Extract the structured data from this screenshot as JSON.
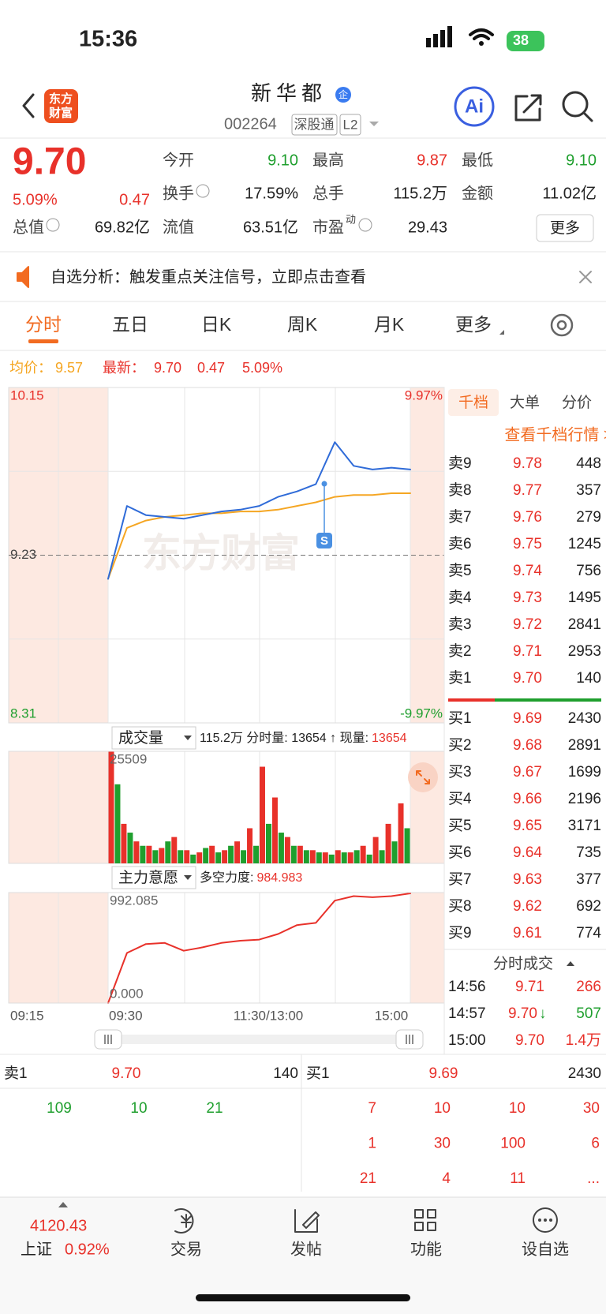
{
  "status": {
    "time": "15:36",
    "battery": "38"
  },
  "header": {
    "logo": [
      "东方",
      "财富"
    ],
    "title": "新华都",
    "badge": "企",
    "code": "002264",
    "tags": [
      "深股通",
      "L2"
    ],
    "ai": "Ai"
  },
  "quote": {
    "price": "9.70",
    "pct": "5.09%",
    "change": "0.47",
    "more": "更多",
    "fields": [
      {
        "label": "今开",
        "value": "9.10",
        "color": "#1f9f2e"
      },
      {
        "label": "最高",
        "value": "9.87",
        "color": "#e8312a"
      },
      {
        "label": "最低",
        "value": "9.10",
        "color": "#1f9f2e"
      },
      {
        "label": "换手",
        "value": "17.59%",
        "color": "#222"
      },
      {
        "label": "总手",
        "value": "115.2万",
        "color": "#222"
      },
      {
        "label": "金额",
        "value": "11.02亿",
        "color": "#222"
      },
      {
        "label": "总值",
        "value": "69.82亿",
        "color": "#222"
      },
      {
        "label": "流值",
        "value": "63.51亿",
        "color": "#222"
      },
      {
        "label": "市盈",
        "sup": "动",
        "value": "29.43",
        "color": "#222"
      }
    ]
  },
  "notice": "自选分析：触发重点关注信号，立即点击查看",
  "tabs": [
    "分时",
    "五日",
    "日K",
    "周K",
    "月K",
    "更多"
  ],
  "chart_data": [
    {
      "type": "line",
      "ylim": [
        8.31,
        10.15
      ],
      "yticks": [
        10.15,
        9.23,
        8.31
      ],
      "y2lim": [
        -9.97,
        9.97
      ],
      "y2ticks": [
        {
          "value": 9.97,
          "label": "9.97%"
        },
        {
          "value": -9.97,
          "label": "-9.97%"
        }
      ],
      "series": [
        {
          "name": "均价：",
          "readout": "9.57",
          "color": "#f5a623",
          "values": [
            9.1,
            9.38,
            9.42,
            9.44,
            9.45,
            9.46,
            9.46,
            9.47,
            9.47,
            9.48,
            9.5,
            9.52,
            9.55,
            9.56,
            9.56,
            9.57,
            9.57
          ]
        },
        {
          "name": "最新：",
          "readout": "9.70",
          "color": "#2f6bd8",
          "values": [
            9.1,
            9.5,
            9.45,
            9.44,
            9.43,
            9.45,
            9.47,
            9.48,
            9.5,
            9.55,
            9.58,
            9.62,
            9.85,
            9.72,
            9.7,
            9.71,
            9.7
          ]
        }
      ],
      "change": "0.47",
      "change_pct": "5.09%",
      "watermark": "东方财富",
      "marker": "S"
    },
    {
      "type": "bar",
      "title": "成交量",
      "info": "115.2万 分时量: 13654 ↑ 现量:",
      "current": "13654",
      "ylim": [
        0,
        25509
      ],
      "yticks": [
        25509
      ],
      "series": [
        {
          "color": "#e8312a",
          "values": [
            25509,
            9000,
            5000,
            4000,
            3500,
            6000,
            3000,
            2500,
            4000,
            3000,
            5000,
            8000,
            22000,
            15000,
            6000,
            4000,
            3000,
            2500,
            3000,
            2500,
            4000,
            6000,
            9000,
            13654
          ]
        },
        {
          "color": "#1f9f2e",
          "values": [
            18000,
            7000,
            4000,
            3000,
            5000,
            3000,
            2000,
            3500,
            2500,
            4000,
            3000,
            4000,
            9000,
            7000,
            4000,
            3000,
            2500,
            2000,
            2500,
            3000,
            2000,
            3000,
            5000,
            8000
          ]
        }
      ]
    },
    {
      "type": "line",
      "title": "主力意愿",
      "info": "多空力度:",
      "current": "984.983",
      "ylim": [
        0,
        992.085
      ],
      "yticks": [
        992.085,
        {
          "value": 0,
          "label": "0.000"
        }
      ],
      "series": [
        {
          "color": "#e8312a",
          "values": [
            0,
            450,
            530,
            540,
            470,
            500,
            540,
            560,
            570,
            620,
            700,
            720,
            920,
            960,
            950,
            960,
            984.983
          ]
        }
      ]
    }
  ],
  "time_axis": [
    "09:15",
    "09:30",
    "11:30/13:00",
    "15:00"
  ],
  "order_book": {
    "tabs": [
      "千档",
      "大单",
      "分价"
    ],
    "link": "查看千档行情 >",
    "asks": [
      {
        "label": "卖9",
        "price": "9.78",
        "volume": "448"
      },
      {
        "label": "卖8",
        "price": "9.77",
        "volume": "357"
      },
      {
        "label": "卖7",
        "price": "9.76",
        "volume": "279"
      },
      {
        "label": "卖6",
        "price": "9.75",
        "volume": "1245"
      },
      {
        "label": "卖5",
        "price": "9.74",
        "volume": "756"
      },
      {
        "label": "卖4",
        "price": "9.73",
        "volume": "1495"
      },
      {
        "label": "卖3",
        "price": "9.72",
        "volume": "2841"
      },
      {
        "label": "卖2",
        "price": "9.71",
        "volume": "2953"
      },
      {
        "label": "卖1",
        "price": "9.70",
        "volume": "140"
      }
    ],
    "bids": [
      {
        "label": "买1",
        "price": "9.69",
        "volume": "2430"
      },
      {
        "label": "买2",
        "price": "9.68",
        "volume": "2891"
      },
      {
        "label": "买3",
        "price": "9.67",
        "volume": "1699"
      },
      {
        "label": "买4",
        "price": "9.66",
        "volume": "2196"
      },
      {
        "label": "买5",
        "price": "9.65",
        "volume": "3171"
      },
      {
        "label": "买6",
        "price": "9.64",
        "volume": "735"
      },
      {
        "label": "买7",
        "price": "9.63",
        "volume": "377"
      },
      {
        "label": "买8",
        "price": "9.62",
        "volume": "692"
      },
      {
        "label": "买9",
        "price": "9.61",
        "volume": "774"
      }
    ],
    "trades_title": "分时成交",
    "trades": [
      {
        "time": "14:56",
        "price": "9.71",
        "volume": "266",
        "color": "#e8312a"
      },
      {
        "time": "14:57",
        "price": "9.70",
        "arrow": "↓",
        "volume": "507",
        "color": "#1f9f2e"
      },
      {
        "time": "15:00",
        "price": "9.70",
        "volume": "1.4万",
        "color": "#e8312a"
      }
    ]
  },
  "queue": {
    "sell": [
      "卖1",
      "9.70",
      "140"
    ],
    "buy": [
      "买1",
      "9.69",
      "2430"
    ],
    "sell_orders": [
      "109",
      "10",
      "21"
    ],
    "buy_orders": [
      [
        "7",
        "10",
        "10",
        "30"
      ],
      [
        "1",
        "30",
        "100",
        "6"
      ],
      [
        "21",
        "4",
        "11",
        "..."
      ]
    ]
  },
  "nav": {
    "index_value": "4120.43",
    "index_name": "上证",
    "index_pct": "0.92%",
    "items": [
      "交易",
      "发帖",
      "功能",
      "设自选"
    ]
  }
}
